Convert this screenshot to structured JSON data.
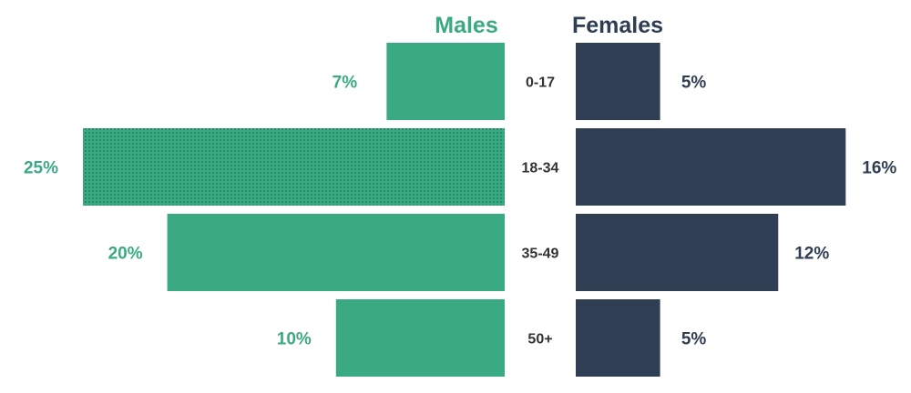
{
  "chart_data": {
    "type": "bar",
    "categories": [
      "0-17",
      "18-34",
      "35-49",
      "50+"
    ],
    "series": [
      {
        "name": "Males",
        "values": [
          7,
          25,
          20,
          10
        ],
        "color": "#3aaa82"
      },
      {
        "name": "Females",
        "values": [
          5,
          16,
          12,
          5
        ],
        "color": "#2f3e52"
      }
    ],
    "value_labels": {
      "Males": [
        "7%",
        "25%",
        "20%",
        "10%"
      ],
      "Females": [
        "5%",
        "16%",
        "12%",
        "5%"
      ]
    },
    "highlight": {
      "series": "Males",
      "category": "18-34",
      "pattern": "dotted"
    },
    "orientation": "horizontal-butterfly",
    "title": "",
    "xlabel": "",
    "ylabel": "",
    "grid": false,
    "legend": "top-center"
  }
}
